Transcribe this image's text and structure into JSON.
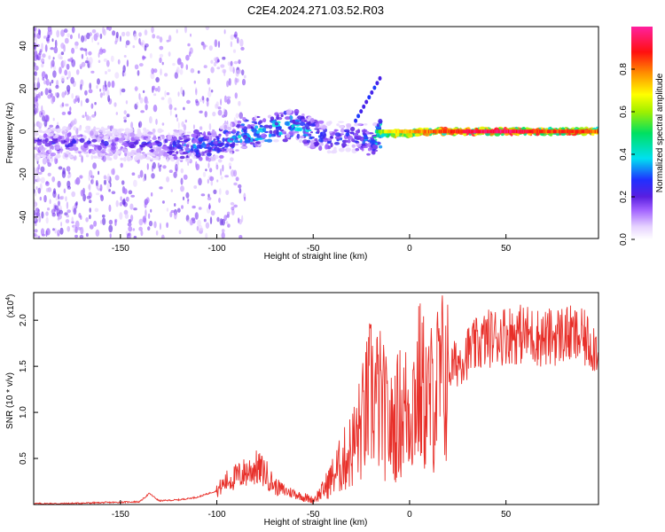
{
  "title": "C2E4.2024.271.03.52.R03",
  "chart_data": [
    {
      "type": "heatmap",
      "panel": "top",
      "xlabel": "Height of straight line (km)",
      "ylabel": "Frequency (Hz)",
      "xlim": [
        -195,
        98
      ],
      "ylim": [
        -50,
        49
      ],
      "xticks": [
        -150,
        -100,
        -50,
        0,
        50
      ],
      "yticks": [
        -40,
        -20,
        0,
        20,
        40
      ],
      "ridge": {
        "x": [
          -195,
          -170,
          -150,
          -130,
          -115,
          -100,
          -90,
          -80,
          -70,
          -60,
          -50,
          -40,
          -30,
          -20,
          -15,
          -10,
          0,
          10,
          20,
          30,
          40,
          50,
          60,
          70,
          80,
          90,
          98
        ],
        "freq": [
          -6,
          -5,
          -6,
          -6,
          -7,
          -6,
          -2,
          0,
          2,
          3,
          -1,
          -3,
          -2,
          -4,
          -1,
          -1,
          -1,
          0,
          0,
          0,
          0,
          0,
          0,
          0,
          0,
          0,
          0
        ],
        "amplitude": [
          0.25,
          0.25,
          0.22,
          0.25,
          0.35,
          0.35,
          0.4,
          0.45,
          0.45,
          0.4,
          0.35,
          0.3,
          0.3,
          0.35,
          0.6,
          0.7,
          0.75,
          0.8,
          0.85,
          0.9,
          0.95,
          0.95,
          0.9,
          0.85,
          0.85,
          0.85,
          0.8
        ]
      },
      "colorbar": {
        "label": "Normalized spectral amplitude",
        "ticks": [
          "0.0",
          "0.2",
          "0.4",
          "0.6",
          "0.8"
        ],
        "range": [
          0,
          1
        ]
      }
    },
    {
      "type": "line",
      "panel": "bottom",
      "series": [
        {
          "name": "SNR",
          "color": "#e8302a",
          "x": [
            -195,
            -180,
            -160,
            -140,
            -135,
            -130,
            -120,
            -110,
            -100,
            -95,
            -90,
            -85,
            -80,
            -75,
            -70,
            -65,
            -60,
            -55,
            -50,
            -45,
            -40,
            -35,
            -30,
            -25,
            -20,
            -15,
            -10,
            -5,
            0,
            5,
            10,
            15,
            20,
            25,
            30,
            40,
            50,
            60,
            70,
            80,
            90,
            98
          ],
          "y": [
            0.01,
            0.01,
            0.02,
            0.03,
            0.12,
            0.04,
            0.05,
            0.08,
            0.15,
            0.25,
            0.3,
            0.35,
            0.4,
            0.35,
            0.2,
            0.15,
            0.12,
            0.08,
            0.05,
            0.15,
            0.3,
            0.45,
            0.6,
            0.85,
            1.2,
            1.1,
            0.8,
            1.0,
            1.05,
            1.3,
            1.1,
            1.3,
            1.45,
            1.55,
            1.65,
            1.8,
            1.85,
            1.85,
            1.8,
            1.85,
            1.8,
            1.7
          ]
        }
      ],
      "xlabel": "Height of straight line (km)",
      "ylabel": "SNR (10 * v/v)",
      "multiplier": "(x10",
      "multiplier_exp": "4",
      "multiplier_close": ")",
      "xlim": [
        -195,
        98
      ],
      "ylim": [
        0,
        2.3
      ],
      "xticks": [
        -150,
        -100,
        -50,
        0,
        50
      ],
      "yticks": [
        "0.5",
        "1.0",
        "1.5",
        "2.0"
      ]
    }
  ]
}
